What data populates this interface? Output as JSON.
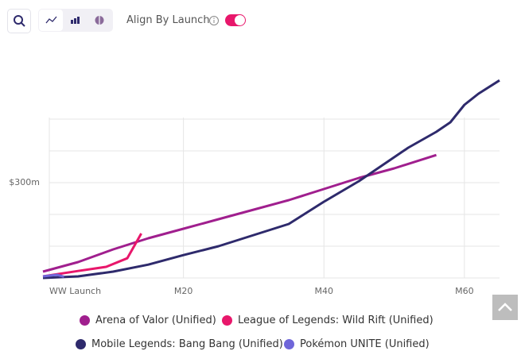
{
  "toolbar": {
    "align_label": "Align By Launch",
    "align_on": true
  },
  "chart_data": {
    "type": "line",
    "xlim": [
      0,
      65
    ],
    "ylim": [
      0,
      625
    ],
    "xticks": [
      {
        "value": 0,
        "label": "WW Launch"
      },
      {
        "value": 20,
        "label": "M20"
      },
      {
        "value": 40,
        "label": "M40"
      },
      {
        "value": 60,
        "label": "M60"
      }
    ],
    "yticks": [
      {
        "value": 300,
        "label": "$300m"
      }
    ],
    "ygrid": [
      0,
      100,
      200,
      300,
      400,
      500
    ],
    "series": [
      {
        "name": "Arena of Valor (Unified)",
        "color": "#a01f8e",
        "x": [
          0,
          5,
          10,
          15,
          20,
          25,
          30,
          35,
          40,
          45,
          50,
          56
        ],
        "values": [
          20,
          50,
          90,
          125,
          155,
          185,
          215,
          245,
          280,
          315,
          345,
          387
        ]
      },
      {
        "name": "League of Legends: Wild Rift (Unified)",
        "color": "#e8176b",
        "x": [
          0,
          5,
          9,
          12,
          14
        ],
        "values": [
          5,
          22,
          35,
          62,
          140
        ]
      },
      {
        "name": "Mobile Legends: Bang Bang (Unified)",
        "color": "#2e2a6c",
        "x": [
          0,
          5,
          10,
          15,
          20,
          25,
          30,
          35,
          40,
          45,
          48,
          52,
          56,
          58,
          60,
          62,
          65
        ],
        "values": [
          0,
          5,
          20,
          42,
          72,
          100,
          135,
          170,
          240,
          305,
          350,
          410,
          460,
          490,
          545,
          580,
          622
        ]
      },
      {
        "name": "Pokémon UNITE (Unified)",
        "color": "#6f66d9",
        "x": [
          0,
          2,
          3
        ],
        "values": [
          5,
          10,
          4
        ]
      }
    ]
  }
}
